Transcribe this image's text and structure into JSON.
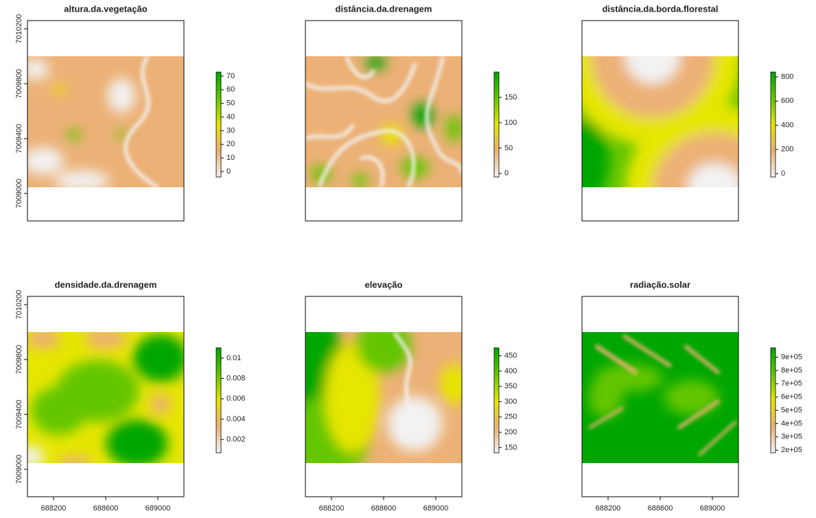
{
  "chart_data": [
    {
      "type": "raster",
      "title": "altura.da.vegetação",
      "xlim": [
        688000,
        689200
      ],
      "ylim": [
        7008800,
        7010260
      ],
      "yticks": [
        7009000,
        7009400,
        7009800,
        7010200
      ],
      "zlim": [
        -4,
        73
      ],
      "zticks": [
        0,
        10,
        20,
        30,
        40,
        50,
        60,
        70
      ],
      "colors": [
        "#F2F2F2",
        "#ECB176",
        "#E6E600",
        "#63C600",
        "#00A600"
      ]
    },
    {
      "type": "raster",
      "title": "distância.da.drenagem",
      "xlim": [
        688000,
        689200
      ],
      "ylim": [
        7008800,
        7010260
      ],
      "zlim": [
        -7,
        200
      ],
      "zticks": [
        0,
        50,
        100,
        150
      ],
      "colors": [
        "#F2F2F2",
        "#ECB176",
        "#E6E600",
        "#63C600",
        "#00A600"
      ]
    },
    {
      "type": "raster",
      "title": "distância.da.borda.florestal",
      "xlim": [
        688000,
        689200
      ],
      "ylim": [
        7008800,
        7010260
      ],
      "zlim": [
        -28,
        840
      ],
      "zticks": [
        0,
        200,
        400,
        600,
        800
      ],
      "colors": [
        "#F2F2F2",
        "#ECB176",
        "#E6E600",
        "#63C600",
        "#00A600"
      ]
    },
    {
      "type": "raster",
      "title": "densidade.da.drenagem",
      "xlim": [
        688000,
        689200
      ],
      "ylim": [
        7008800,
        7010260
      ],
      "xticks": [
        688200,
        688600,
        689000
      ],
      "yticks": [
        7009000,
        7009400,
        7009800,
        7010200
      ],
      "zlim": [
        0.0007,
        0.011
      ],
      "zticks": [
        0.002,
        0.004,
        0.006,
        0.008,
        0.01
      ],
      "colors": [
        "#F2F2F2",
        "#ECB176",
        "#E6E600",
        "#63C600",
        "#00A600"
      ]
    },
    {
      "type": "raster",
      "title": "elevação",
      "xlim": [
        688000,
        689200
      ],
      "ylim": [
        7008800,
        7010260
      ],
      "xticks": [
        688200,
        688600,
        689000
      ],
      "zlim": [
        133,
        476
      ],
      "zticks": [
        150,
        200,
        250,
        300,
        350,
        400,
        450
      ],
      "colors": [
        "#F2F2F2",
        "#ECB176",
        "#E6E600",
        "#63C600",
        "#00A600"
      ]
    },
    {
      "type": "raster",
      "title": "radiação.solar",
      "xlim": [
        688000,
        689200
      ],
      "ylim": [
        7008800,
        7010260
      ],
      "xticks": [
        688200,
        688600,
        689000
      ],
      "zlim": [
        180000,
        970000
      ],
      "zticks": [
        {
          "value": 200000,
          "label": "2e+05"
        },
        {
          "value": 300000,
          "label": "3e+05"
        },
        {
          "value": 400000,
          "label": "4e+05"
        },
        {
          "value": 500000,
          "label": "5e+05"
        },
        {
          "value": 600000,
          "label": "6e+05"
        },
        {
          "value": 700000,
          "label": "7e+05"
        },
        {
          "value": 800000,
          "label": "8e+05"
        },
        {
          "value": 900000,
          "label": "9e+05"
        }
      ],
      "colors": [
        "#F2F2F2",
        "#ECB176",
        "#E6E600",
        "#63C600",
        "#00A600"
      ]
    }
  ]
}
